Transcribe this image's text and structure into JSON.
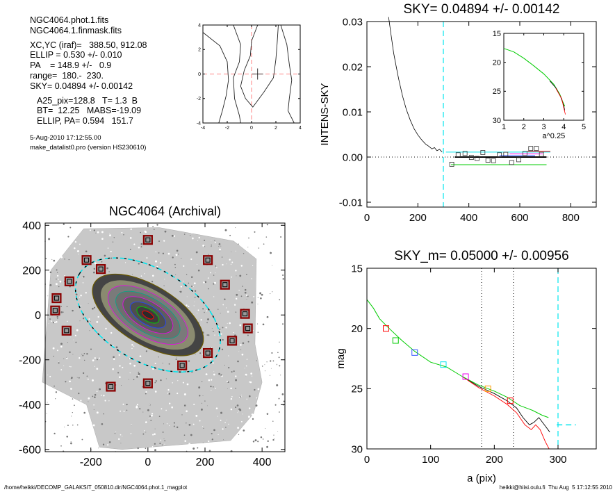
{
  "info": {
    "file1": "NGC4064.phot.1.fits",
    "file2": "NGC4064.1.finmask.fits",
    "xcyc": "XC,YC (iraf)=   388.50, 912.08",
    "ellip": "ELLIP = 0.530 +/- 0.010",
    "pa": "PA    = 148.9 +/-   0.9",
    "range": "range=  180.-  230.",
    "sky": "SKY= 0.04894 +/- 0.00142",
    "a25": "A25_pix=128.8   T= 1.3  B",
    "bt": "BT=  12.25   MABS=-19.09",
    "ellippa": "ELLIP, PA= 0.594   151.7",
    "date": "5-Aug-2010 17:12:55.00",
    "program": "make_datalist0.pro (version HS230610)"
  },
  "footer": {
    "path": "/home/heikki/DECOMP_GALAKSIT_050810.dir/NGC4064.phot.1_magplot",
    "user": "heikki@hiisi.oulu.fi  Thu Aug  5 17:12:55 2010"
  },
  "colors": {
    "axes": "#000000",
    "cyan": "#00e5ee",
    "red": "#ff0000",
    "green": "#00cc00",
    "magenta": "#ee00ee",
    "blue": "#3355ff",
    "orange": "#ff9900",
    "pink_dash": "#ff8080",
    "mask": "#8b0000"
  },
  "chart_data": [
    {
      "id": "contour",
      "type": "contour",
      "xlim": [
        -4,
        4
      ],
      "ylim": [
        -4,
        4
      ],
      "xticks": [
        "-4",
        "-2",
        "0",
        "2",
        "4"
      ],
      "yticks": [
        "-4",
        "-2",
        "0",
        "2",
        "4"
      ],
      "crosshair": [
        0,
        0
      ],
      "marker": [
        0.5,
        0
      ],
      "contours": [
        [
          [
            -4.0,
            3.4
          ],
          [
            -2.6,
            2.3
          ],
          [
            -2.0,
            1.0
          ],
          [
            -1.9,
            -0.5
          ],
          [
            -2.1,
            -1.8
          ],
          [
            -2.4,
            -3.0
          ],
          [
            -2.7,
            -4.0
          ]
        ],
        [
          [
            -1.5,
            4.0
          ],
          [
            -0.9,
            2.4
          ],
          [
            -1.0,
            1.0
          ],
          [
            -1.5,
            -0.3
          ],
          [
            -1.4,
            -2.0
          ],
          [
            -1.0,
            -3.4
          ],
          [
            -0.9,
            -4.0
          ]
        ],
        [
          [
            0.5,
            4.0
          ],
          [
            0.0,
            2.7
          ],
          [
            -0.1,
            1.5
          ],
          [
            -0.6,
            0.3
          ],
          [
            -0.9,
            -1.0
          ],
          [
            -0.5,
            -2.0
          ],
          [
            0.1,
            -2.7
          ],
          [
            1.0,
            -1.5
          ],
          [
            1.8,
            -0.3
          ],
          [
            2.0,
            1.2
          ],
          [
            2.1,
            2.5
          ],
          [
            2.2,
            4.0
          ]
        ],
        [
          [
            2.4,
            4.0
          ],
          [
            2.9,
            2.4
          ],
          [
            3.1,
            0.8
          ],
          [
            3.3,
            -0.5
          ],
          [
            3.1,
            -2.0
          ],
          [
            3.0,
            -3.0
          ],
          [
            3.5,
            -4.0
          ]
        ]
      ]
    },
    {
      "id": "sky",
      "type": "line",
      "title": "SKY= 0.04894 +/- 0.00142",
      "xlabel": "",
      "ylabel": "INTENS-SKY",
      "xlim": [
        0,
        900
      ],
      "ylim": [
        -0.011,
        0.031
      ],
      "xticks": [
        0,
        200,
        400,
        600,
        800
      ],
      "yticks": [
        -0.01,
        0.0,
        0.01,
        0.02,
        0.03
      ],
      "ytick_labels": [
        "-0.01",
        "0.00",
        "0.01",
        "0.02",
        "0.03"
      ],
      "vline": 300,
      "hline": 0.0,
      "profile": [
        [
          85,
          0.031
        ],
        [
          95,
          0.027
        ],
        [
          105,
          0.023
        ],
        [
          115,
          0.02
        ],
        [
          125,
          0.0172
        ],
        [
          140,
          0.0135
        ],
        [
          155,
          0.0105
        ],
        [
          170,
          0.0082
        ],
        [
          185,
          0.0063
        ],
        [
          200,
          0.0049
        ],
        [
          215,
          0.0038
        ],
        [
          230,
          0.0029
        ],
        [
          245,
          0.0023
        ],
        [
          255,
          0.0018
        ],
        [
          265,
          0.0021
        ],
        [
          275,
          0.0014
        ],
        [
          285,
          0.0017
        ],
        [
          295,
          0.0011
        ]
      ],
      "boxes": [
        [
          333,
          -0.0016
        ],
        [
          358,
          0.0005
        ],
        [
          385,
          0.0008
        ],
        [
          410,
          -0.0001
        ],
        [
          432,
          -0.0003
        ],
        [
          455,
          0.001
        ],
        [
          475,
          -0.0007
        ],
        [
          497,
          -0.0008
        ],
        [
          520,
          0.0005
        ],
        [
          545,
          0.0006
        ],
        [
          568,
          -0.0012
        ],
        [
          596,
          -0.0006
        ],
        [
          620,
          0.0008
        ],
        [
          643,
          0.0019
        ],
        [
          665,
          0.0019
        ],
        [
          685,
          0.0006
        ]
      ],
      "segments": [
        {
          "color": "black",
          "y": 0.0,
          "x": [
            345,
            705
          ],
          "width": 2
        },
        {
          "color": "green",
          "y": -0.0017,
          "x": [
            330,
            705
          ],
          "width": 1
        },
        {
          "color": "cyan",
          "y": 0.0011,
          "x": [
            310,
            720
          ],
          "width": 1
        },
        {
          "color": "red",
          "y": 0.0013,
          "x": [
            630,
            720
          ],
          "width": 1
        },
        {
          "color": "magenta",
          "y": 0.0007,
          "x": [
            560,
            690
          ],
          "width": 1
        },
        {
          "color": "blue",
          "y": 0.0003,
          "x": [
            520,
            660
          ],
          "width": 1
        }
      ],
      "inset": {
        "xlabel": "a^0.25",
        "xlim": [
          1,
          5
        ],
        "ylim": [
          15,
          30
        ],
        "xticks": [
          1,
          2,
          3,
          4,
          5
        ],
        "yticks": [
          15,
          20,
          25,
          30
        ],
        "green": [
          [
            1.0,
            17.6
          ],
          [
            1.5,
            18.2
          ],
          [
            2.0,
            19.3
          ],
          [
            2.5,
            20.6
          ],
          [
            3.0,
            22.0
          ],
          [
            3.5,
            23.8
          ],
          [
            3.8,
            25.5
          ],
          [
            3.95,
            26.8
          ],
          [
            4.05,
            27.6
          ]
        ],
        "black": [
          [
            3.3,
            23.2
          ],
          [
            3.6,
            24.4
          ],
          [
            3.85,
            26.0
          ],
          [
            4.0,
            27.5
          ],
          [
            4.05,
            28.3
          ]
        ],
        "red": [
          [
            3.6,
            24.5
          ],
          [
            3.9,
            26.3
          ],
          [
            4.0,
            27.9
          ],
          [
            4.08,
            29.0
          ]
        ]
      }
    },
    {
      "id": "image",
      "type": "image",
      "title": "NGC4064 (Archival)",
      "xlim": [
        -360,
        480
      ],
      "ylim": [
        -610,
        410
      ],
      "xticks": [
        -200,
        0,
        200,
        400
      ],
      "yticks": [
        -600,
        -400,
        -200,
        0,
        200,
        400
      ],
      "ellipse_params": {
        "center": [
          0,
          0
        ],
        "a": 280,
        "b": 132,
        "pa_deg": 148.9
      },
      "mask_boxes": [
        [
          0,
          335
        ],
        [
          -215,
          245
        ],
        [
          -165,
          205
        ],
        [
          -275,
          150
        ],
        [
          -320,
          75
        ],
        [
          -325,
          20
        ],
        [
          -285,
          -70
        ],
        [
          210,
          245
        ],
        [
          270,
          135
        ],
        [
          340,
          5
        ],
        [
          350,
          -60
        ],
        [
          295,
          -115
        ],
        [
          210,
          -170
        ],
        [
          120,
          -225
        ],
        [
          0,
          -305
        ],
        [
          -130,
          -320
        ]
      ]
    },
    {
      "id": "mag",
      "type": "line",
      "title": "SKY_m=  0.05000 +/- 0.00956",
      "xlabel": "a (pix)",
      "ylabel": "mag",
      "xlim": [
        0,
        360
      ],
      "ylim": [
        15,
        30
      ],
      "xticks": [
        0,
        100,
        200,
        300
      ],
      "yticks": [
        15,
        20,
        25,
        30
      ],
      "vlines_dotted": [
        180,
        230
      ],
      "vline_cyan": 300,
      "hseg_cyan": {
        "y": 28.0,
        "x": [
          298,
          328
        ]
      },
      "green": [
        [
          0,
          17.6
        ],
        [
          10,
          18.3
        ],
        [
          20,
          19.2
        ],
        [
          35,
          20.0
        ],
        [
          55,
          21.0
        ],
        [
          75,
          21.9
        ],
        [
          100,
          22.8
        ],
        [
          125,
          23.2
        ],
        [
          150,
          24.0
        ],
        [
          175,
          24.7
        ],
        [
          200,
          25.2
        ],
        [
          220,
          25.7
        ],
        [
          240,
          26.4
        ],
        [
          260,
          26.8
        ],
        [
          275,
          27.2
        ],
        [
          285,
          27.4
        ]
      ],
      "black": [
        [
          150,
          24.0
        ],
        [
          175,
          24.8
        ],
        [
          200,
          25.4
        ],
        [
          220,
          26.0
        ],
        [
          235,
          26.6
        ],
        [
          245,
          27.4
        ],
        [
          255,
          28.0
        ],
        [
          262,
          27.8
        ],
        [
          270,
          27.4
        ],
        [
          280,
          28.1
        ],
        [
          287,
          28.6
        ]
      ],
      "red": [
        [
          150,
          24.0
        ],
        [
          175,
          24.9
        ],
        [
          200,
          25.6
        ],
        [
          220,
          26.3
        ],
        [
          235,
          27.0
        ],
        [
          248,
          28.0
        ],
        [
          258,
          28.4
        ],
        [
          265,
          28.0
        ],
        [
          272,
          28.4
        ],
        [
          280,
          29.4
        ],
        [
          286,
          30.0
        ]
      ],
      "boxes": [
        {
          "x": 30,
          "y": 20.0,
          "color": "red"
        },
        {
          "x": 45,
          "y": 21.0,
          "color": "green"
        },
        {
          "x": 75,
          "y": 22.0,
          "color": "blue"
        },
        {
          "x": 120,
          "y": 23.0,
          "color": "cyan"
        },
        {
          "x": 155,
          "y": 24.0,
          "color": "magenta"
        },
        {
          "x": 190,
          "y": 25.0,
          "color": "orange"
        },
        {
          "x": 225,
          "y": 26.0,
          "color": "red"
        }
      ]
    }
  ]
}
